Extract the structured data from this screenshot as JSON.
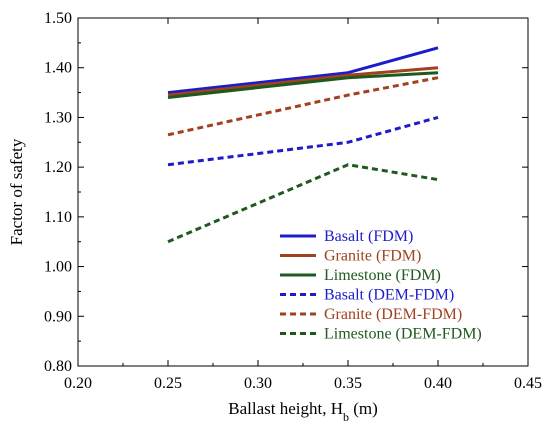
{
  "chart_data": {
    "type": "line",
    "xlabel_main": "Ballast height, H",
    "xlabel_sub": "b",
    "xlabel_unit": " (m)",
    "ylabel": "Factor of safety",
    "xlim": [
      0.2,
      0.45
    ],
    "ylim": [
      0.8,
      1.5
    ],
    "x_ticks": [
      "0.20",
      "0.25",
      "0.30",
      "0.35",
      "0.40",
      "0.45"
    ],
    "y_ticks": [
      "0.80",
      "0.90",
      "1.00",
      "1.10",
      "1.20",
      "1.30",
      "1.40",
      "1.50"
    ],
    "grid": false,
    "legend_position": "bottom-right",
    "series": [
      {
        "name": "Basalt (FDM)",
        "color": "#1c1cc8",
        "style": "solid",
        "x": [
          0.25,
          0.35,
          0.4
        ],
        "y": [
          1.35,
          1.39,
          1.44
        ]
      },
      {
        "name": "Granite (FDM)",
        "color": "#a0421e",
        "style": "solid",
        "x": [
          0.25,
          0.35,
          0.4
        ],
        "y": [
          1.345,
          1.385,
          1.4
        ]
      },
      {
        "name": "Limestone (FDM)",
        "color": "#1e5a1e",
        "style": "solid",
        "x": [
          0.25,
          0.35,
          0.4
        ],
        "y": [
          1.34,
          1.38,
          1.39
        ]
      },
      {
        "name": "Basalt (DEM-FDM)",
        "color": "#1c1cc8",
        "style": "dashed",
        "x": [
          0.25,
          0.35,
          0.4
        ],
        "y": [
          1.205,
          1.25,
          1.3
        ]
      },
      {
        "name": "Granite (DEM-FDM)",
        "color": "#a0421e",
        "style": "dashed",
        "x": [
          0.25,
          0.35,
          0.4
        ],
        "y": [
          1.265,
          1.345,
          1.38
        ]
      },
      {
        "name": "Limestone (DEM-FDM)",
        "color": "#1e5a1e",
        "style": "dashed",
        "x": [
          0.25,
          0.35,
          0.4
        ],
        "y": [
          1.05,
          1.205,
          1.175
        ]
      }
    ]
  }
}
